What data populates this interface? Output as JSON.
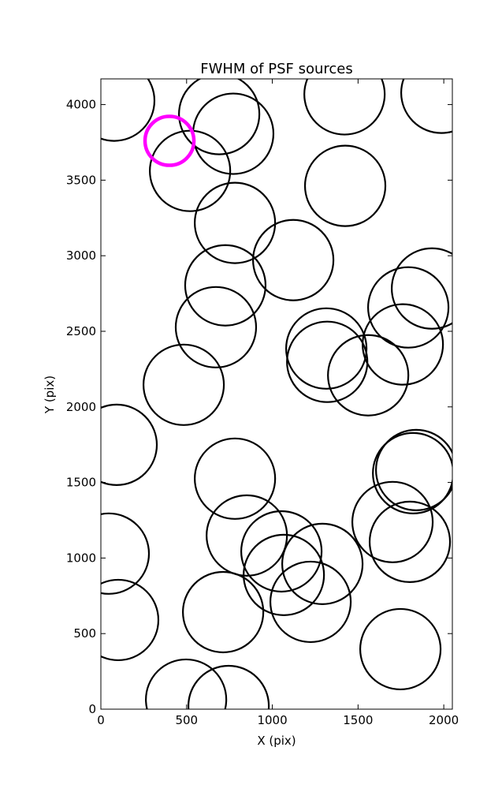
{
  "chart_data": {
    "type": "scatter",
    "title": "FWHM of PSF sources",
    "x_label": "X (pix)",
    "y_label": "Y (pix)",
    "xlim": [
      0,
      2050
    ],
    "ylim": [
      0,
      4170
    ],
    "xticks": [
      0,
      500,
      1000,
      1500,
      2000
    ],
    "yticks": [
      0,
      500,
      1000,
      1500,
      2000,
      2500,
      3000,
      3500,
      4000
    ],
    "series": [
      {
        "color": "#000000",
        "x": [
          78,
          690,
          772,
          1421,
          1986,
          520,
          1425,
          782,
          1122,
          726,
          1931,
          1793,
          671,
          1315,
          1761,
          1320,
          1559,
          483,
          92,
          1839,
          1821,
          782,
          1701,
          851,
          1802,
          46,
          1053,
          1067,
          1292,
          1223,
          101,
          713,
          1747,
          497,
          745
        ],
        "values": [
          4026,
          3937,
          3807,
          4068,
          4078,
          3561,
          3462,
          3217,
          2971,
          2804,
          2783,
          2658,
          2527,
          2386,
          2413,
          2298,
          2209,
          2146,
          1749,
          1582,
          1561,
          1525,
          1238,
          1149,
          1107,
          1029,
          1044,
          888,
          961,
          710,
          590,
          642,
          397,
          63,
          21
        ]
      },
      {
        "color": "#ff00ff",
        "x": [
          400
        ],
        "values": [
          3760
        ]
      }
    ]
  }
}
